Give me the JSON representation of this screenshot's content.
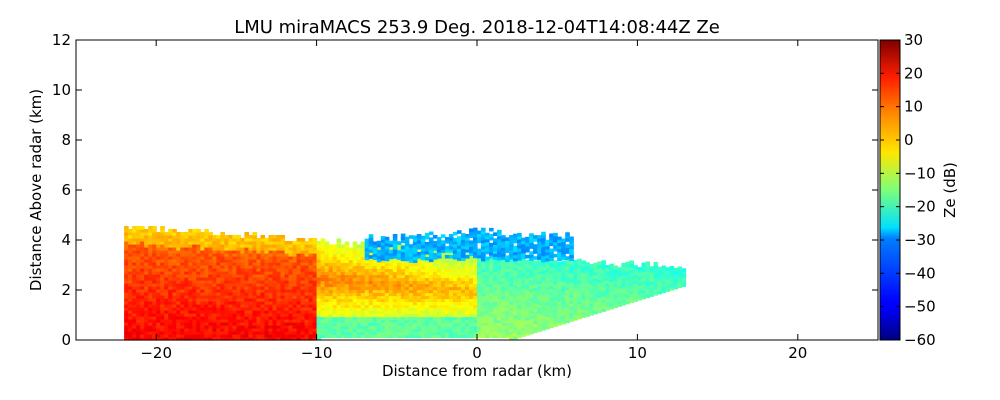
{
  "chart_data": {
    "type": "heatmap",
    "title": "LMU miraMACS 253.9 Deg. 2018-12-04T14:08:44Z  Ze",
    "xlabel": "Distance from radar (km)",
    "ylabel": "Distance Above radar  (km)",
    "xlim": [
      -25,
      25
    ],
    "ylim": [
      0,
      12
    ],
    "xticks": [
      -20,
      -10,
      0,
      10,
      20
    ],
    "xtick_labels": [
      "−20",
      "−10",
      "0",
      "10",
      "20"
    ],
    "yticks": [
      0,
      2,
      4,
      6,
      8,
      10,
      12
    ],
    "ytick_labels": [
      "0",
      "2",
      "4",
      "6",
      "8",
      "10",
      "12"
    ],
    "grid": false,
    "colorbar": {
      "label": "Ze (dB)",
      "range": [
        -60,
        30
      ],
      "ticks": [
        30,
        20,
        10,
        0,
        -10,
        -20,
        -30,
        -40,
        -50,
        -60
      ],
      "tick_labels": [
        "30",
        "20",
        "10",
        "0",
        "−10",
        "−20",
        "−30",
        "−40",
        "−50",
        "−60"
      ],
      "colormap": "jet"
    },
    "echo_region": {
      "description_values_dB": "reflectivity field along radar scan",
      "x_extent_km": [
        -22,
        13
      ],
      "max_height_km": 4.5,
      "near_end_top_km": 4.5,
      "far_end_top_km": 2.8,
      "core_values_dB": [
        10,
        20
      ],
      "mid_values_dB": [
        -10,
        0
      ],
      "edge_values_dB": [
        -30,
        -20
      ],
      "upper_cloud_values_dB": [
        -40,
        -30
      ],
      "upper_cloud_x_km": [
        -7,
        6
      ],
      "upper_cloud_height_km": [
        3.2,
        4.3
      ]
    }
  }
}
